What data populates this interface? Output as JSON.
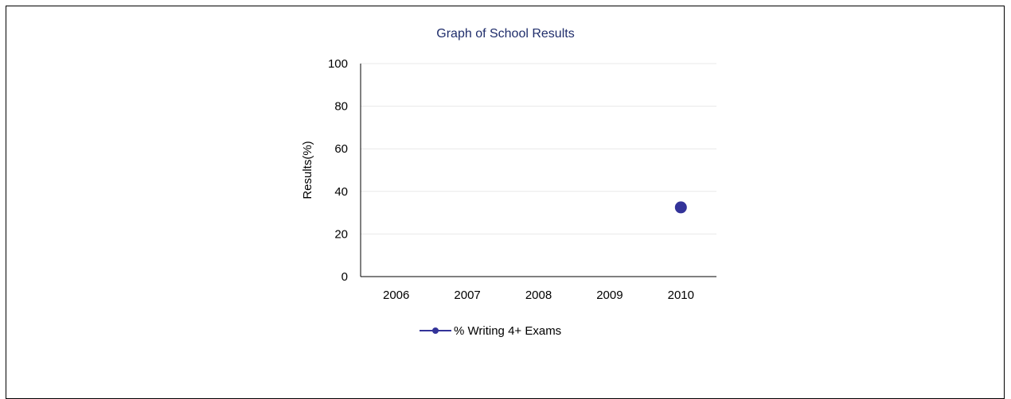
{
  "chart_data": {
    "type": "line",
    "title": "Graph of School Results",
    "xlabel": "",
    "ylabel": "Results(%)",
    "categories": [
      "2006",
      "2007",
      "2008",
      "2009",
      "2010"
    ],
    "series": [
      {
        "name": "% Writing 4+ Exams",
        "values": [
          null,
          null,
          null,
          null,
          32.5
        ],
        "color": "#333399"
      }
    ],
    "ylim": [
      0,
      100
    ],
    "yticks": [
      0,
      20,
      40,
      60,
      80,
      100
    ],
    "grid": true,
    "legend": "bottom"
  },
  "colors": {
    "title": "#1f2d6b",
    "series": "#333399",
    "grid": "#e8e8e8",
    "axis": "#000000"
  }
}
